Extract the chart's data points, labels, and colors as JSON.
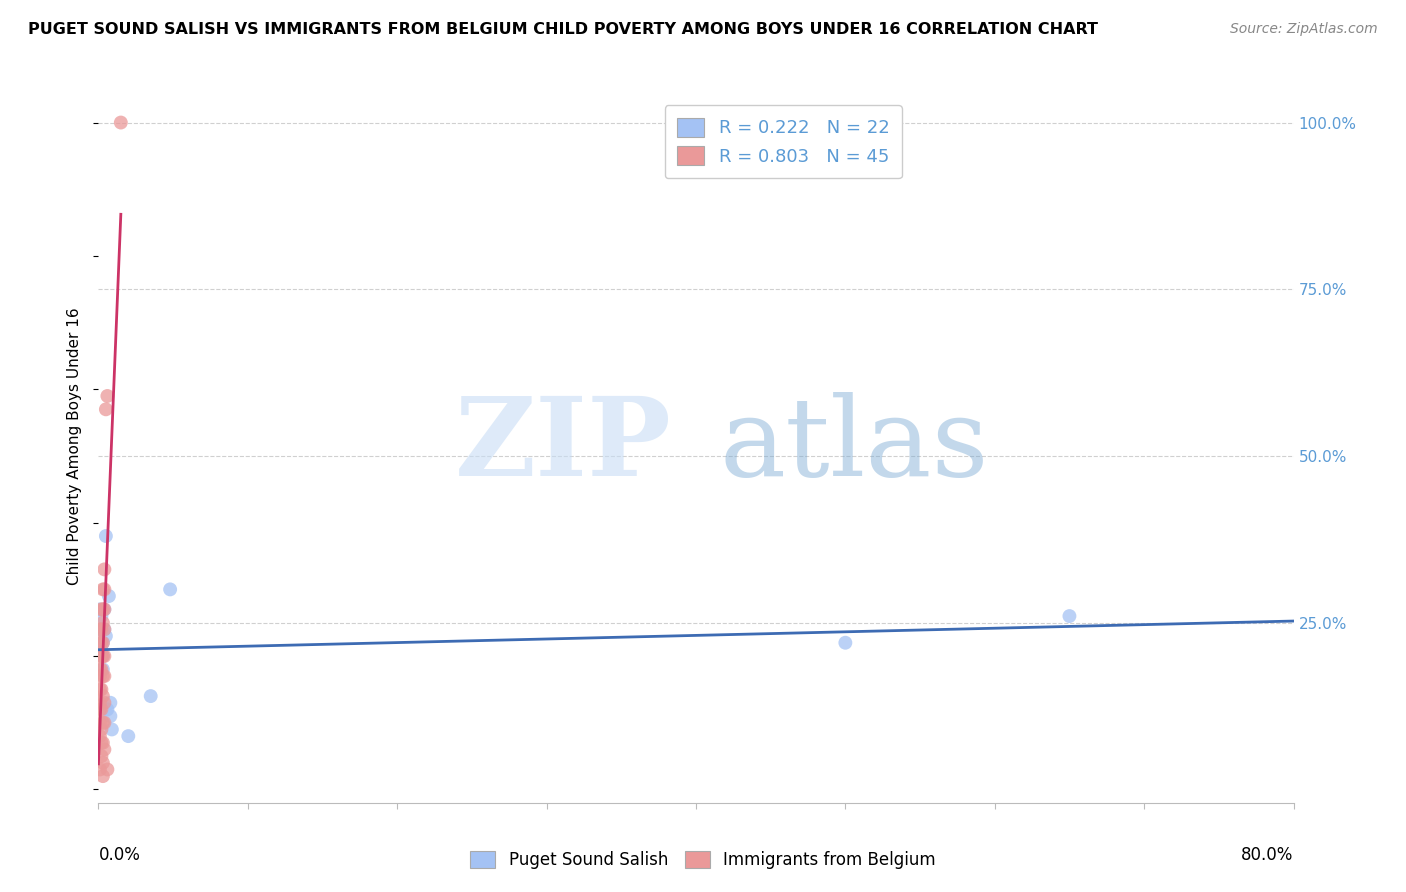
{
  "title": "PUGET SOUND SALISH VS IMMIGRANTS FROM BELGIUM CHILD POVERTY AMONG BOYS UNDER 16 CORRELATION CHART",
  "source": "Source: ZipAtlas.com",
  "ylabel": "Child Poverty Among Boys Under 16",
  "legend_bottom": [
    "Puget Sound Salish",
    "Immigrants from Belgium"
  ],
  "R_blue": 0.222,
  "N_blue": 22,
  "R_pink": 0.803,
  "N_pink": 45,
  "blue_color": "#a4c2f4",
  "pink_color": "#ea9999",
  "blue_line_color": "#3d6bb3",
  "pink_line_color": "#cc3366",
  "xlim": [
    0.0,
    0.8
  ],
  "ylim": [
    -0.02,
    1.05
  ],
  "blue_scatter_x": [
    0.001,
    0.001,
    0.002,
    0.002,
    0.002,
    0.003,
    0.003,
    0.003,
    0.004,
    0.004,
    0.005,
    0.005,
    0.006,
    0.007,
    0.008,
    0.008,
    0.009,
    0.02,
    0.048,
    0.5,
    0.65,
    0.035
  ],
  "blue_scatter_y": [
    0.27,
    0.24,
    0.26,
    0.24,
    0.21,
    0.22,
    0.2,
    0.18,
    0.27,
    0.24,
    0.38,
    0.23,
    0.12,
    0.29,
    0.13,
    0.11,
    0.09,
    0.08,
    0.3,
    0.22,
    0.26,
    0.14
  ],
  "pink_scatter_x": [
    0.001,
    0.001,
    0.001,
    0.001,
    0.001,
    0.001,
    0.001,
    0.001,
    0.001,
    0.001,
    0.002,
    0.002,
    0.002,
    0.002,
    0.002,
    0.002,
    0.002,
    0.002,
    0.002,
    0.002,
    0.003,
    0.003,
    0.003,
    0.003,
    0.003,
    0.003,
    0.003,
    0.003,
    0.003,
    0.003,
    0.003,
    0.004,
    0.004,
    0.004,
    0.004,
    0.004,
    0.004,
    0.004,
    0.004,
    0.004,
    0.005,
    0.006,
    0.006,
    0.001,
    0.015
  ],
  "pink_scatter_y": [
    0.2,
    0.18,
    0.22,
    0.17,
    0.15,
    0.13,
    0.24,
    0.12,
    0.1,
    0.08,
    0.27,
    0.24,
    0.22,
    0.2,
    0.18,
    0.15,
    0.12,
    0.09,
    0.07,
    0.05,
    0.3,
    0.27,
    0.25,
    0.22,
    0.2,
    0.17,
    0.14,
    0.1,
    0.07,
    0.04,
    0.02,
    0.33,
    0.3,
    0.27,
    0.24,
    0.2,
    0.17,
    0.13,
    0.1,
    0.06,
    0.57,
    0.59,
    0.03,
    0.03,
    1.0
  ]
}
